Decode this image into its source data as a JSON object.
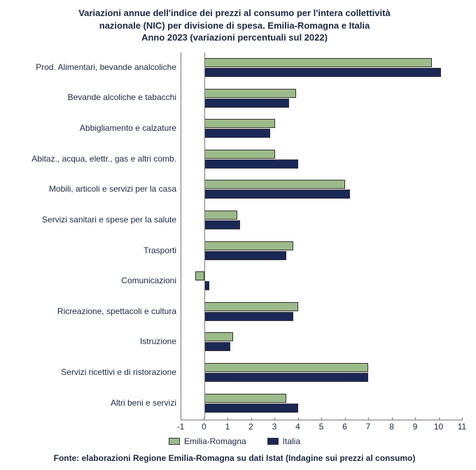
{
  "chart": {
    "type": "bar",
    "title_line1": "Variazioni annue dell'indice dei prezzi al consumo per l'intera collettività",
    "title_line2": "nazionale (NIC) per divisione di spesa. Emilia-Romagna e Italia",
    "title_line3": "Anno 2023 (variazioni percentuali sul 2022)",
    "title_fontsize": 13,
    "title_color": "#1a2940",
    "label_fontsize": 12,
    "label_color": "#1a2940",
    "background_color": "#ffffff",
    "axis_color": "#777777",
    "xlim": [
      -1,
      11
    ],
    "xtick_step": 1,
    "categories": [
      "Prod. Alimentari, bevande analcoliche",
      "Bevande alcoliche e tabacchi",
      "Abbigliamento e calzature",
      "Abitaz., acqua, elettr., gas e altri comb.",
      "Mobili, articoli e servizi per la casa",
      "Servizi sanitari e spese per la salute",
      "Trasporti",
      "Comunicazioni",
      "Ricreazione, spettacoli e cultura",
      "Istruzione",
      "Servizi ricettivi e di ristorazione",
      "Altri beni e servizi"
    ],
    "series": [
      {
        "name": "Emilia-Romagna",
        "color": "#9cbb8a",
        "values": [
          9.7,
          3.9,
          3.0,
          3.0,
          6.0,
          1.4,
          3.8,
          -0.4,
          4.0,
          1.2,
          7.0,
          3.5
        ]
      },
      {
        "name": "Italia",
        "color": "#1a2856",
        "values": [
          10.1,
          3.6,
          2.8,
          4.0,
          6.2,
          1.5,
          3.5,
          0.2,
          3.8,
          1.1,
          7.0,
          4.0
        ]
      }
    ],
    "legend_position": "bottom",
    "source": "Fonte: elaborazioni Regione Emilia-Romagna su dati Istat (Indagine sui prezzi al consumo)"
  }
}
